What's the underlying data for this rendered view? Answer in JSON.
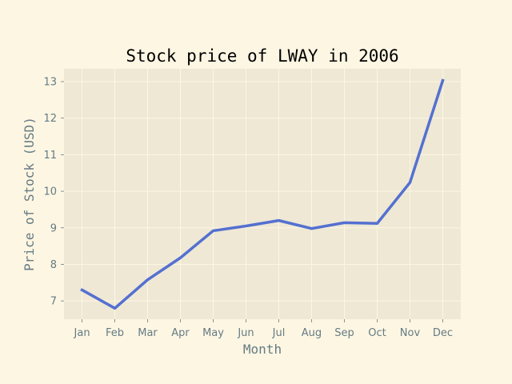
{
  "colors": {
    "figure_background": "#fdf6e3",
    "plot_background": "#eee8d5",
    "grid": "#fdf6e3",
    "line": "#5470d0",
    "text": "#657b83"
  },
  "chart_data": {
    "type": "line",
    "title": "Stock price of LWAY in 2006",
    "xlabel": "Month",
    "ylabel": "Price of Stock (USD)",
    "categories": [
      "Jan",
      "Feb",
      "Mar",
      "Apr",
      "May",
      "Jun",
      "Jul",
      "Aug",
      "Sep",
      "Oct",
      "Nov",
      "Dec"
    ],
    "series": [
      {
        "values": [
          7.3,
          6.8,
          7.58,
          8.18,
          8.92,
          9.05,
          9.2,
          8.98,
          9.14,
          9.12,
          10.24,
          13.03
        ]
      }
    ],
    "ylim": [
      6.5,
      13.35
    ],
    "yticks": [
      7,
      8,
      9,
      10,
      11,
      12,
      13
    ],
    "grid": true,
    "legend": false
  }
}
